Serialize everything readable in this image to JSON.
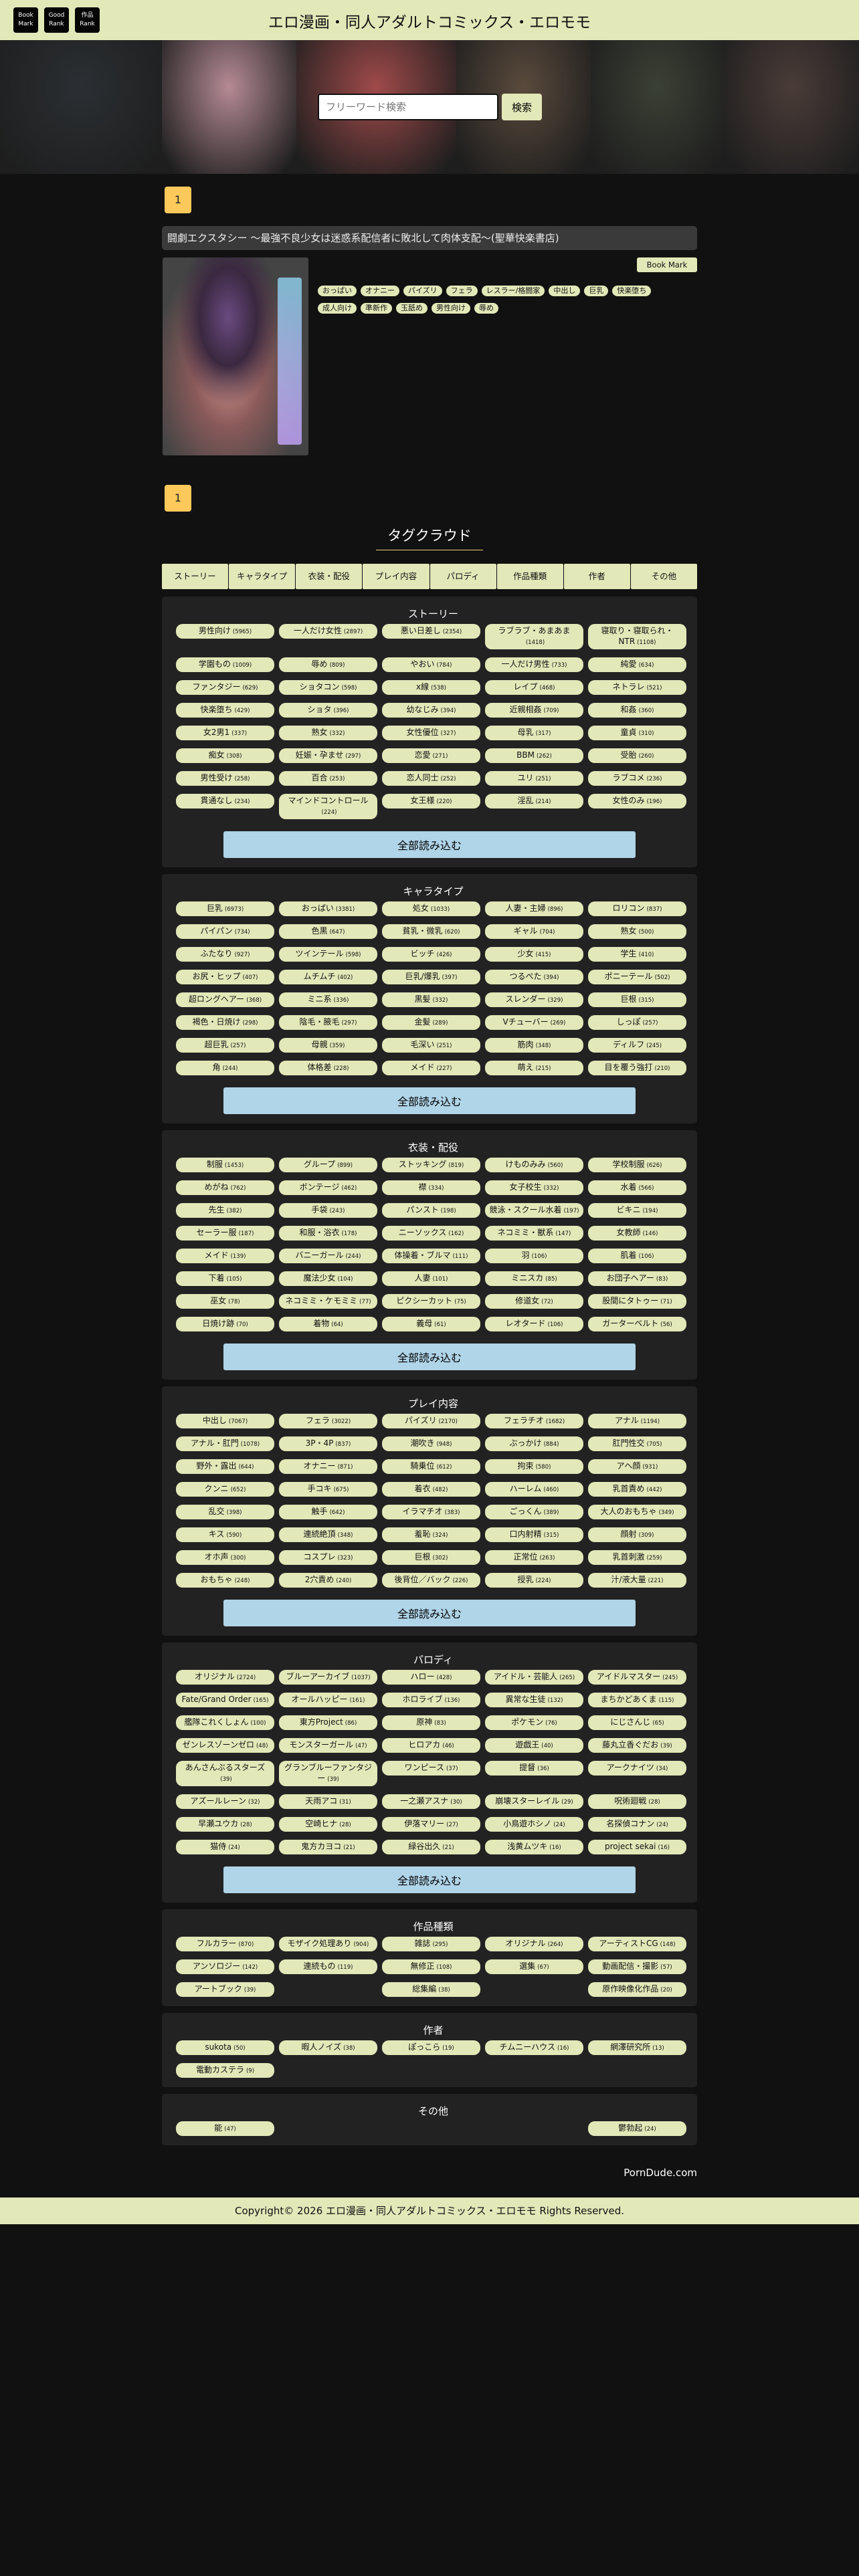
{
  "header": {
    "buttons": [
      "Book\nMark",
      "Good\nRank",
      "作品\nRank"
    ],
    "title": "エロ漫画・同人アダルトコミックス・エロモモ"
  },
  "search": {
    "placeholder": "フリーワード検索",
    "button": "検索"
  },
  "hero_colors": [
    "#2b2f33",
    "#b58a95",
    "#a04a4a",
    "#5a4a3c",
    "#3b4034",
    "#4a3c38"
  ],
  "pagination": {
    "current": "1"
  },
  "book": {
    "title": "闘劇エクスタシー ～最強不良少女は迷惑系配信者に敗北して肉体支配～(聖華快楽書店)",
    "bookmark": "Book Mark",
    "tags": [
      "おっぱい",
      "オナニー",
      "パイズリ",
      "フェラ",
      "レスラー/格闘家",
      "中出し",
      "巨乳",
      "快楽堕ち",
      "成人向け",
      "準新作",
      "玉舐め",
      "男性向け",
      "辱め"
    ]
  },
  "tag_cloud": {
    "title": "タグクラウド",
    "tabs": [
      "ストーリー",
      "キャラタイプ",
      "衣装・配役",
      "プレイ内容",
      "パロディ",
      "作品種類",
      "作者",
      "その他"
    ],
    "load_all": "全部読み込む",
    "sections": [
      {
        "title": "ストーリー",
        "has_load_all": true,
        "tags": [
          {
            "name": "男性向け",
            "count": 5965
          },
          {
            "name": "一人だけ女性",
            "count": 2897
          },
          {
            "name": "悪い日差し",
            "count": 2354
          },
          {
            "name": "ラブラブ・あまあま",
            "count": 1418
          },
          {
            "name": "寝取り・寝取られ・NTR",
            "count": 1108
          },
          {
            "name": "学園もの",
            "count": 1009
          },
          {
            "name": "辱め",
            "count": 809
          },
          {
            "name": "やおい",
            "count": 784
          },
          {
            "name": "一人だけ男性",
            "count": 733
          },
          {
            "name": "純愛",
            "count": 634
          },
          {
            "name": "ファンタジー",
            "count": 629
          },
          {
            "name": "ショタコン",
            "count": 598
          },
          {
            "name": "x線",
            "count": 538
          },
          {
            "name": "レイプ",
            "count": 468
          },
          {
            "name": "ネトラレ",
            "count": 521
          },
          {
            "name": "快楽堕ち",
            "count": 429
          },
          {
            "name": "ショタ",
            "count": 396
          },
          {
            "name": "幼なじみ",
            "count": 394
          },
          {
            "name": "近親相姦",
            "count": 709
          },
          {
            "name": "和姦",
            "count": 360
          },
          {
            "name": "女2男1",
            "count": 337
          },
          {
            "name": "熟女",
            "count": 332
          },
          {
            "name": "女性優位",
            "count": 327
          },
          {
            "name": "母乳",
            "count": 317
          },
          {
            "name": "童貞",
            "count": 310
          },
          {
            "name": "痴女",
            "count": 308
          },
          {
            "name": "妊娠・孕ませ",
            "count": 297
          },
          {
            "name": "恋愛",
            "count": 271
          },
          {
            "name": "BBM",
            "count": 262
          },
          {
            "name": "受胎",
            "count": 260
          },
          {
            "name": "男性受け",
            "count": 258
          },
          {
            "name": "百合",
            "count": 253
          },
          {
            "name": "恋人同士",
            "count": 252
          },
          {
            "name": "ユリ",
            "count": 251
          },
          {
            "name": "ラブコメ",
            "count": 236
          },
          {
            "name": "貫通なし",
            "count": 234
          },
          {
            "name": "マインドコントロール",
            "count": 224
          },
          {
            "name": "女王様",
            "count": 220
          },
          {
            "name": "淫乱",
            "count": 214
          },
          {
            "name": "女性のみ",
            "count": 196
          }
        ]
      },
      {
        "title": "キャラタイプ",
        "has_load_all": true,
        "tags": [
          {
            "name": "巨乳",
            "count": 6973
          },
          {
            "name": "おっぱい",
            "count": 3381
          },
          {
            "name": "処女",
            "count": 1033
          },
          {
            "name": "人妻・主婦",
            "count": 896
          },
          {
            "name": "ロリコン",
            "count": 837
          },
          {
            "name": "パイパン",
            "count": 734
          },
          {
            "name": "色黒",
            "count": 647
          },
          {
            "name": "貧乳・微乳",
            "count": 620
          },
          {
            "name": "ギャル",
            "count": 704
          },
          {
            "name": "熟女",
            "count": 500
          },
          {
            "name": "ふたなり",
            "count": 927
          },
          {
            "name": "ツインテール",
            "count": 598
          },
          {
            "name": "ビッチ",
            "count": 426
          },
          {
            "name": "少女",
            "count": 415
          },
          {
            "name": "学生",
            "count": 410
          },
          {
            "name": "お尻・ヒップ",
            "count": 407
          },
          {
            "name": "ムチムチ",
            "count": 402
          },
          {
            "name": "巨乳/爆乳",
            "count": 397
          },
          {
            "name": "つるぺた",
            "count": 394
          },
          {
            "name": "ポニーテール",
            "count": 502
          },
          {
            "name": "超ロングヘアー",
            "count": 368
          },
          {
            "name": "ミニ系",
            "count": 336
          },
          {
            "name": "黒髪",
            "count": 332
          },
          {
            "name": "スレンダー",
            "count": 329
          },
          {
            "name": "巨根",
            "count": 315
          },
          {
            "name": "褐色・日焼け",
            "count": 298
          },
          {
            "name": "陰毛・腋毛",
            "count": 297
          },
          {
            "name": "金髪",
            "count": 289
          },
          {
            "name": "Vチューバー",
            "count": 269
          },
          {
            "name": "しっぽ",
            "count": 257
          },
          {
            "name": "超巨乳",
            "count": 257
          },
          {
            "name": "母親",
            "count": 359
          },
          {
            "name": "毛深い",
            "count": 251
          },
          {
            "name": "筋肉",
            "count": 348
          },
          {
            "name": "ディルフ",
            "count": 245
          },
          {
            "name": "角",
            "count": 244
          },
          {
            "name": "体格差",
            "count": 228
          },
          {
            "name": "メイド",
            "count": 227
          },
          {
            "name": "萌え",
            "count": 215
          },
          {
            "name": "目を覆う強打",
            "count": 210
          }
        ]
      },
      {
        "title": "衣装・配役",
        "has_load_all": true,
        "tags": [
          {
            "name": "制服",
            "count": 1453
          },
          {
            "name": "グループ",
            "count": 899
          },
          {
            "name": "ストッキング",
            "count": 819
          },
          {
            "name": "けものみみ",
            "count": 560
          },
          {
            "name": "学校制服",
            "count": 626
          },
          {
            "name": "めがね",
            "count": 762
          },
          {
            "name": "ボンテージ",
            "count": 462
          },
          {
            "name": "襟",
            "count": 334
          },
          {
            "name": "女子校生",
            "count": 332
          },
          {
            "name": "水着",
            "count": 566
          },
          {
            "name": "先生",
            "count": 382
          },
          {
            "name": "手袋",
            "count": 243
          },
          {
            "name": "パンスト",
            "count": 198
          },
          {
            "name": "競泳・スクール水着",
            "count": 197
          },
          {
            "name": "ビキニ",
            "count": 194
          },
          {
            "name": "セーラー服",
            "count": 187
          },
          {
            "name": "和服・浴衣",
            "count": 178
          },
          {
            "name": "ニーソックス",
            "count": 162
          },
          {
            "name": "ネコミミ・獣系",
            "count": 147
          },
          {
            "name": "女教師",
            "count": 146
          },
          {
            "name": "メイド",
            "count": 139
          },
          {
            "name": "バニーガール",
            "count": 244
          },
          {
            "name": "体操着・ブルマ",
            "count": 111
          },
          {
            "name": "羽",
            "count": 106
          },
          {
            "name": "肌着",
            "count": 106
          },
          {
            "name": "下着",
            "count": 105
          },
          {
            "name": "魔法少女",
            "count": 104
          },
          {
            "name": "人妻",
            "count": 101
          },
          {
            "name": "ミニスカ",
            "count": 85
          },
          {
            "name": "お団子ヘアー",
            "count": 83
          },
          {
            "name": "巫女",
            "count": 78
          },
          {
            "name": "ネコミミ・ケモミミ",
            "count": 77
          },
          {
            "name": "ピクシーカット",
            "count": 75
          },
          {
            "name": "修道女",
            "count": 72
          },
          {
            "name": "股間にタトゥー",
            "count": 71
          },
          {
            "name": "日焼け跡",
            "count": 70
          },
          {
            "name": "着物",
            "count": 64
          },
          {
            "name": "義母",
            "count": 61
          },
          {
            "name": "レオタード",
            "count": 106
          },
          {
            "name": "ガーターベルト",
            "count": 56
          }
        ]
      },
      {
        "title": "プレイ内容",
        "has_load_all": true,
        "tags": [
          {
            "name": "中出し",
            "count": 7067
          },
          {
            "name": "フェラ",
            "count": 3022
          },
          {
            "name": "パイズリ",
            "count": 2170
          },
          {
            "name": "フェラチオ",
            "count": 1682
          },
          {
            "name": "アナル",
            "count": 1194
          },
          {
            "name": "アナル・肛門",
            "count": 1078
          },
          {
            "name": "3P・4P",
            "count": 837
          },
          {
            "name": "潮吹き",
            "count": 948
          },
          {
            "name": "ぶっかけ",
            "count": 884
          },
          {
            "name": "肛門性交",
            "count": 705
          },
          {
            "name": "野外・露出",
            "count": 644
          },
          {
            "name": "オナニー",
            "count": 871
          },
          {
            "name": "騎乗位",
            "count": 612
          },
          {
            "name": "拘束",
            "count": 580
          },
          {
            "name": "アヘ顔",
            "count": 931
          },
          {
            "name": "クンニ",
            "count": 652
          },
          {
            "name": "手コキ",
            "count": 675
          },
          {
            "name": "着衣",
            "count": 482
          },
          {
            "name": "ハーレム",
            "count": 460
          },
          {
            "name": "乳首責め",
            "count": 442
          },
          {
            "name": "乱交",
            "count": 398
          },
          {
            "name": "触手",
            "count": 642
          },
          {
            "name": "イラマチオ",
            "count": 383
          },
          {
            "name": "ごっくん",
            "count": 389
          },
          {
            "name": "大人のおもちゃ",
            "count": 349
          },
          {
            "name": "キス",
            "count": 590
          },
          {
            "name": "連続絶頂",
            "count": 348
          },
          {
            "name": "羞恥",
            "count": 324
          },
          {
            "name": "口内射精",
            "count": 315
          },
          {
            "name": "顔射",
            "count": 309
          },
          {
            "name": "オホ声",
            "count": 300
          },
          {
            "name": "コスプレ",
            "count": 323
          },
          {
            "name": "巨根",
            "count": 302
          },
          {
            "name": "正常位",
            "count": 263
          },
          {
            "name": "乳首刺激",
            "count": 259
          },
          {
            "name": "おもちゃ",
            "count": 248
          },
          {
            "name": "2穴責め",
            "count": 240
          },
          {
            "name": "後背位／バック",
            "count": 226
          },
          {
            "name": "授乳",
            "count": 224
          },
          {
            "name": "汁/液大量",
            "count": 221
          }
        ]
      },
      {
        "title": "パロディ",
        "has_load_all": true,
        "tags": [
          {
            "name": "オリジナル",
            "count": 2724
          },
          {
            "name": "ブルーアーカイブ",
            "count": 1037
          },
          {
            "name": "ハロー",
            "count": 428
          },
          {
            "name": "アイドル・芸能人",
            "count": 265
          },
          {
            "name": "アイドルマスター",
            "count": 245
          },
          {
            "name": "Fate/Grand Order",
            "count": 165
          },
          {
            "name": "オールハッピー",
            "count": 161
          },
          {
            "name": "ホロライブ",
            "count": 136
          },
          {
            "name": "異常な生徒",
            "count": 132
          },
          {
            "name": "まちかどあくま",
            "count": 115
          },
          {
            "name": "艦隊これくしょん",
            "count": 100
          },
          {
            "name": "東方Project",
            "count": 86
          },
          {
            "name": "原神",
            "count": 83
          },
          {
            "name": "ポケモン",
            "count": 76
          },
          {
            "name": "にじさんじ",
            "count": 65
          },
          {
            "name": "ゼンレスゾーンゼロ",
            "count": 48
          },
          {
            "name": "モンスターガール",
            "count": 47
          },
          {
            "name": "ヒロアカ",
            "count": 46
          },
          {
            "name": "遊戯王",
            "count": 40
          },
          {
            "name": "藤丸立香ぐだお",
            "count": 39
          },
          {
            "name": "あんさんぶるスターズ",
            "count": 39
          },
          {
            "name": "グランブルーファンタジー",
            "count": 39
          },
          {
            "name": "ワンピース",
            "count": 37
          },
          {
            "name": "提督",
            "count": 36
          },
          {
            "name": "アークナイツ",
            "count": 34
          },
          {
            "name": "アズールレーン",
            "count": 32
          },
          {
            "name": "天雨アコ",
            "count": 31
          },
          {
            "name": "一之瀬アスナ",
            "count": 30
          },
          {
            "name": "崩壊スターレイル",
            "count": 29
          },
          {
            "name": "呪術廻戦",
            "count": 28
          },
          {
            "name": "早瀬ユウカ",
            "count": 28
          },
          {
            "name": "空崎ヒナ",
            "count": 28
          },
          {
            "name": "伊落マリー",
            "count": 27
          },
          {
            "name": "小鳥遊ホシノ",
            "count": 24
          },
          {
            "name": "名探偵コナン",
            "count": 24
          },
          {
            "name": "猫侍",
            "count": 24
          },
          {
            "name": "鬼方カヨコ",
            "count": 21
          },
          {
            "name": "緑谷出久",
            "count": 21
          },
          {
            "name": "浅黄ムツキ",
            "count": 16
          },
          {
            "name": "project sekai",
            "count": 16
          }
        ]
      },
      {
        "title": "作品種類",
        "has_load_all": false,
        "tags": [
          {
            "name": "フルカラー",
            "count": 870
          },
          {
            "name": "モザイク処理あり",
            "count": 904
          },
          {
            "name": "雑誌",
            "count": 295
          },
          {
            "name": "オリジナル",
            "count": 264
          },
          {
            "name": "アーティストCG",
            "count": 148
          },
          {
            "name": "アンソロジー",
            "count": 142
          },
          {
            "name": "連続もの",
            "count": 119
          },
          {
            "name": "無修正",
            "count": 108
          },
          {
            "name": "選集",
            "count": 67
          },
          {
            "name": "動画配信・撮影",
            "count": 57
          },
          {
            "name": "アートブック",
            "count": 39
          },
          null,
          {
            "name": "総集編",
            "count": 38
          },
          null,
          {
            "name": "原作映像化作品",
            "count": 20
          }
        ]
      },
      {
        "title": "作者",
        "has_load_all": false,
        "tags": [
          {
            "name": "sukota",
            "count": 50
          },
          {
            "name": "暇人ノイズ",
            "count": 38
          },
          {
            "name": "ぽっこら",
            "count": 19
          },
          {
            "name": "チムニーハウス",
            "count": 16
          },
          {
            "name": "網澤研究所",
            "count": 13
          },
          {
            "name": "電動カステラ",
            "count": 9
          }
        ]
      },
      {
        "title": "その他",
        "has_load_all": false,
        "tags": [
          {
            "name": "能",
            "count": 47
          },
          null,
          null,
          null,
          {
            "name": "鬱勃起",
            "count": 24
          }
        ]
      }
    ]
  },
  "porndude": "PornDude.com",
  "footer": "Copyright© 2026 エロ漫画・同人アダルトコミックス・エロモモ Rights Reserved."
}
